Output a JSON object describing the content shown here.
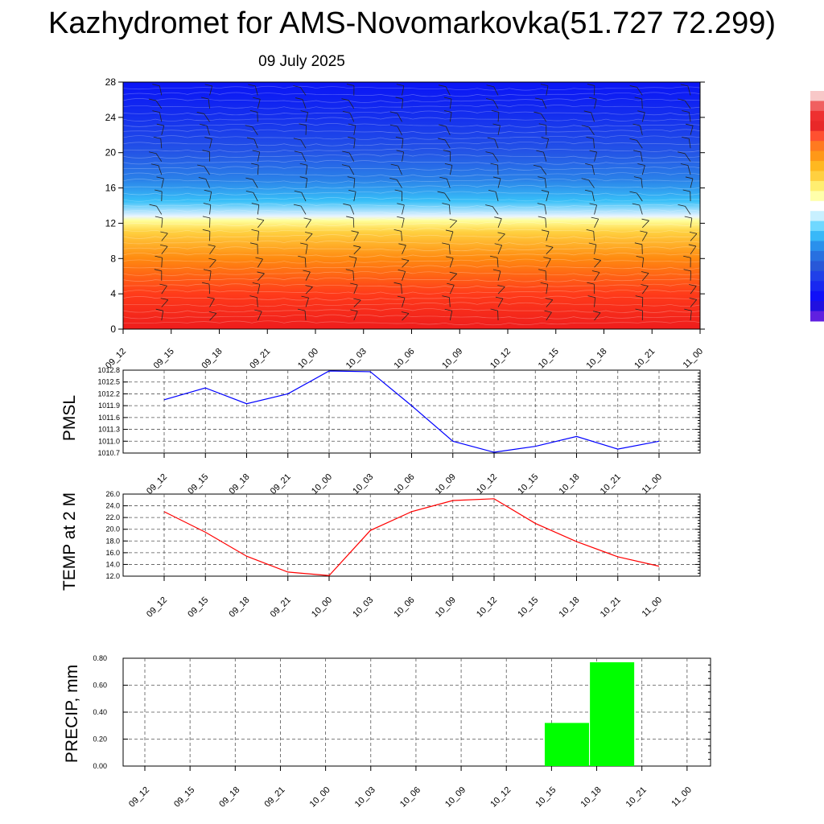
{
  "title": "Kazhydromet for AMS-Novomarkovka(51.727 72.299)",
  "subtitle": "09 July 2025",
  "colors": {
    "pmsl": "#0000ff",
    "temp": "#ff0000",
    "precip": "#00ff00"
  },
  "chart_data": [
    {
      "type": "heatmap",
      "title": "",
      "xlabel": "",
      "ylabel": "",
      "x_tick_labels": [
        "09_12",
        "09_15",
        "09_18",
        "09_21",
        "10_00",
        "10_03",
        "10_06",
        "10_09",
        "10_12",
        "10_15",
        "10_18",
        "10_21",
        "11_00"
      ],
      "y_tick_labels": [
        "0",
        "4",
        "8",
        "12",
        "16",
        "20",
        "24",
        "28"
      ],
      "ylim": [
        0,
        28
      ],
      "description_of_fill": "level-time temperature shading; warm red near 0 to yellow at 12, cyan-blue 14-18, deep blue above 20",
      "color_stops": [
        {
          "level": 0,
          "color": "#ee1c1c"
        },
        {
          "level": 4,
          "color": "#ff3b1a"
        },
        {
          "level": 8,
          "color": "#ff8a10"
        },
        {
          "level": 11,
          "color": "#ffd040"
        },
        {
          "level": 12.3,
          "color": "#ffff9a"
        },
        {
          "level": 12.8,
          "color": "#e8f4ff"
        },
        {
          "level": 14.5,
          "color": "#38c0f8"
        },
        {
          "level": 17,
          "color": "#2a80e8"
        },
        {
          "level": 20,
          "color": "#2455e6"
        },
        {
          "level": 24,
          "color": "#1530ee"
        },
        {
          "level": 28,
          "color": "#0a14f6"
        }
      ],
      "colorbar": [
        "#f8c8c8",
        "#f06060",
        "#ee3030",
        "#e82828",
        "#ff5030",
        "#ff7a20",
        "#ff9818",
        "#ffb820",
        "#ffd040",
        "#ffee70",
        "#ffffaa",
        "#ffffff",
        "#c8f0ff",
        "#70d8ff",
        "#38b8f8",
        "#2a90ec",
        "#2870e0",
        "#2858d8",
        "#2040e8",
        "#1828f0",
        "#1010f8",
        "#2010e0",
        "#6020e0"
      ]
    },
    {
      "type": "line",
      "ylabel": "PMSL",
      "x": [
        "09_12",
        "09_15",
        "09_18",
        "09_21",
        "10_00",
        "10_03",
        "10_06",
        "10_09",
        "10_12",
        "10_15",
        "10_18",
        "10_21",
        "11_00"
      ],
      "series": [
        {
          "values": [
            1012.05,
            1012.35,
            1011.95,
            1012.2,
            1012.78,
            1012.76,
            1011.9,
            1011.0,
            1010.72,
            1010.87,
            1011.12,
            1010.8,
            1011.0
          ]
        }
      ],
      "ylim": [
        1010.7,
        1012.8
      ],
      "y_ticks": [
        1010.7,
        1011.0,
        1011.3,
        1011.6,
        1011.9,
        1012.2,
        1012.5,
        1012.8
      ],
      "y_tick_labels": [
        "1010.7",
        "1011.0",
        "1011.3",
        "1011.6",
        "1011.9",
        "1012.2",
        "1012.5",
        "1012.8"
      ],
      "grid": true
    },
    {
      "type": "line",
      "ylabel": "TEMP at 2 M",
      "x": [
        "09_12",
        "09_15",
        "09_18",
        "09_21",
        "10_00",
        "10_03",
        "10_06",
        "10_09",
        "10_12",
        "10_15",
        "10_18",
        "10_21",
        "11_00"
      ],
      "series": [
        {
          "values": [
            23.0,
            19.5,
            15.4,
            12.7,
            12.1,
            19.8,
            23.0,
            24.9,
            25.2,
            21.0,
            17.9,
            15.3,
            13.7
          ]
        }
      ],
      "ylim": [
        12.0,
        26.0
      ],
      "y_ticks": [
        12,
        14,
        16,
        18,
        20,
        22,
        24,
        26
      ],
      "y_tick_labels": [
        "12.0",
        "14.0",
        "16.0",
        "18.0",
        "20.0",
        "22.0",
        "24.0",
        "26.0"
      ],
      "grid": true
    },
    {
      "type": "bar",
      "ylabel": "PRECIP, mm",
      "categories": [
        "09_12",
        "09_15",
        "09_18",
        "09_21",
        "10_00",
        "10_03",
        "10_06",
        "10_09",
        "10_12",
        "10_15",
        "10_18",
        "10_21",
        "11_00"
      ],
      "values": [
        0,
        0,
        0,
        0,
        0,
        0,
        0,
        0,
        0,
        0.32,
        0.77,
        0,
        0
      ],
      "ylim": [
        0,
        0.8
      ],
      "y_ticks": [
        0,
        0.2,
        0.4,
        0.6,
        0.8
      ],
      "y_tick_labels": [
        "0.00",
        "0.20",
        "0.40",
        "0.60",
        "0.80"
      ],
      "grid": true
    }
  ]
}
